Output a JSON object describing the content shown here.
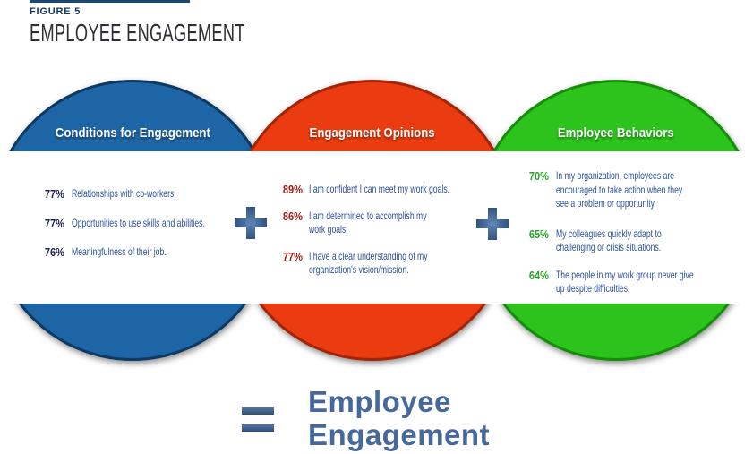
{
  "figure": {
    "label": "FIGURE 5",
    "title": "EMPLOYEE ENGAGEMENT"
  },
  "colors": {
    "rule": "#1b4977",
    "figure_label": "#163a60",
    "title_text": "#2e2e36",
    "body_text": "#2a5096",
    "steel_blue_accent": "#46689c",
    "band": "#ffffff"
  },
  "circles": [
    {
      "header": "Conditions for Engagement",
      "fill": "#1d65a4",
      "border": "#0d3a63",
      "percent_color": "#1c2150",
      "items": [
        {
          "pct": "77%",
          "lines": [
            "Relationships with co-workers."
          ]
        },
        {
          "pct": "77%",
          "lines": [
            "Opportunities to use skills and abilities."
          ]
        },
        {
          "pct": "76%",
          "lines": [
            "Meaningfulness of their job."
          ]
        }
      ]
    },
    {
      "header": "Engagement Opinions",
      "fill": "#ea3c10",
      "border": "#a42407",
      "percent_color": "#9e1c18",
      "items": [
        {
          "pct": "89%",
          "lines": [
            "I am confident I can meet my work goals."
          ]
        },
        {
          "pct": "86%",
          "lines": [
            "I am determined to accomplish my",
            "work goals."
          ]
        },
        {
          "pct": "77%",
          "lines": [
            "I have a clear understanding of my",
            "organization's vision/mission."
          ]
        }
      ]
    },
    {
      "header": "Employee Behaviors",
      "fill": "#2cc41c",
      "border": "#168c0b",
      "percent_color": "#27a427",
      "items": [
        {
          "pct": "70%",
          "lines": [
            "In my organization, employees are",
            "encouraged to take action when they",
            "see a problem or opportunity."
          ]
        },
        {
          "pct": "65%",
          "lines": [
            "My colleagues quickly adapt to",
            "challenging or crisis situations."
          ]
        },
        {
          "pct": "64%",
          "lines": [
            "The people in my work group never give",
            "up despite difficulties."
          ]
        }
      ]
    }
  ],
  "operators": {
    "plus": "+",
    "equals": "="
  },
  "result": {
    "line1": "Employee",
    "line2": "Engagement"
  }
}
